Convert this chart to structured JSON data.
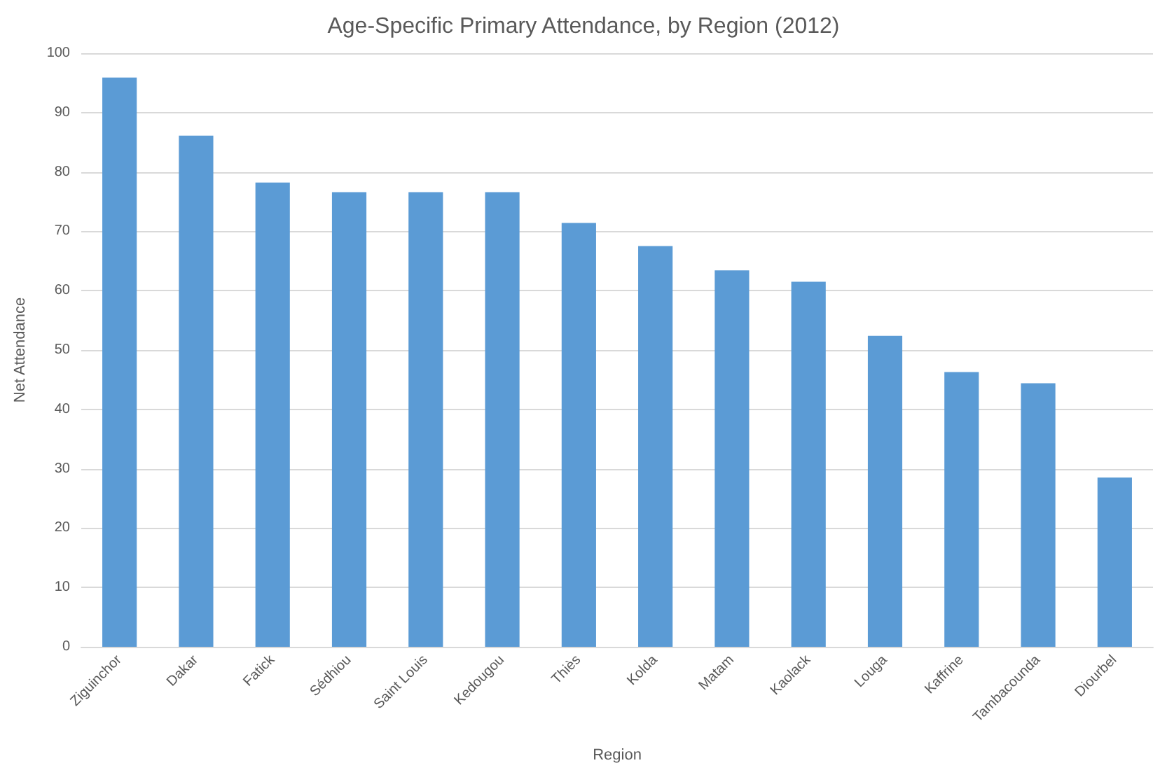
{
  "chart_data": {
    "type": "bar",
    "title": "Age-Specific Primary Attendance, by Region (2012)",
    "xlabel": "Region",
    "ylabel": "Net Attendance",
    "categories": [
      "Ziguinchor",
      "Dakar",
      "Fatick",
      "Sédhiou",
      "Saint Louis",
      "Kedougou",
      "Thiès",
      "Kolda",
      "Matam",
      "Kaolack",
      "Louga",
      "Kaffrine",
      "Tambacounda",
      "Diourbel"
    ],
    "values": [
      95.9,
      86.1,
      78.2,
      76.6,
      76.6,
      76.6,
      71.4,
      67.5,
      63.4,
      61.5,
      52.4,
      46.3,
      44.4,
      28.5
    ],
    "color": "#5b9bd5",
    "ylim": [
      0,
      100
    ],
    "yticks": [
      0,
      10,
      20,
      30,
      40,
      50,
      60,
      70,
      80,
      90,
      100
    ],
    "grid": "y"
  }
}
